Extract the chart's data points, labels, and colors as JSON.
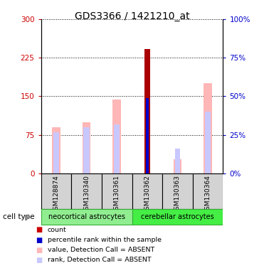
{
  "title": "GDS3366 / 1421210_at",
  "samples": [
    "GSM128874",
    "GSM130340",
    "GSM130361",
    "GSM130362",
    "GSM130363",
    "GSM130364"
  ],
  "cell_types": [
    {
      "label": "neocortical astrocytes",
      "color": "#90ee90",
      "border": "#44bb44",
      "span": [
        0,
        2
      ]
    },
    {
      "label": "cerebellar astrocytes",
      "color": "#44ee44",
      "border": "#44bb44",
      "span": [
        3,
        5
      ]
    }
  ],
  "value_absent": [
    90,
    100,
    143,
    0,
    28,
    175
  ],
  "rank_absent_top": [
    80,
    90,
    95,
    0,
    0,
    120
  ],
  "count_value": [
    0,
    0,
    0,
    242,
    0,
    0
  ],
  "percentile_rank": [
    0,
    0,
    0,
    147,
    0,
    0
  ],
  "rank_absent_gsm363": [
    0,
    0,
    0,
    0,
    48,
    0
  ],
  "left_ylim": [
    0,
    300
  ],
  "right_ylim": [
    0,
    100
  ],
  "left_yticks": [
    0,
    75,
    150,
    225,
    300
  ],
  "right_yticks": [
    0,
    25,
    50,
    75,
    100
  ],
  "left_color": "#cc0000",
  "right_color": "#0000cc",
  "value_absent_color": "#ffb6b6",
  "rank_absent_color": "#c8c8ff",
  "count_color": "#aa0000",
  "percentile_color": "#0000cc",
  "bg_color": "#ffffff",
  "plot_bg": "#ffffff",
  "grid_color": "#000000",
  "legend_items": [
    {
      "color": "#cc0000",
      "label": "count"
    },
    {
      "color": "#0000cc",
      "label": "percentile rank within the sample"
    },
    {
      "color": "#ffb6b6",
      "label": "value, Detection Call = ABSENT"
    },
    {
      "color": "#c8c8ff",
      "label": "rank, Detection Call = ABSENT"
    }
  ]
}
